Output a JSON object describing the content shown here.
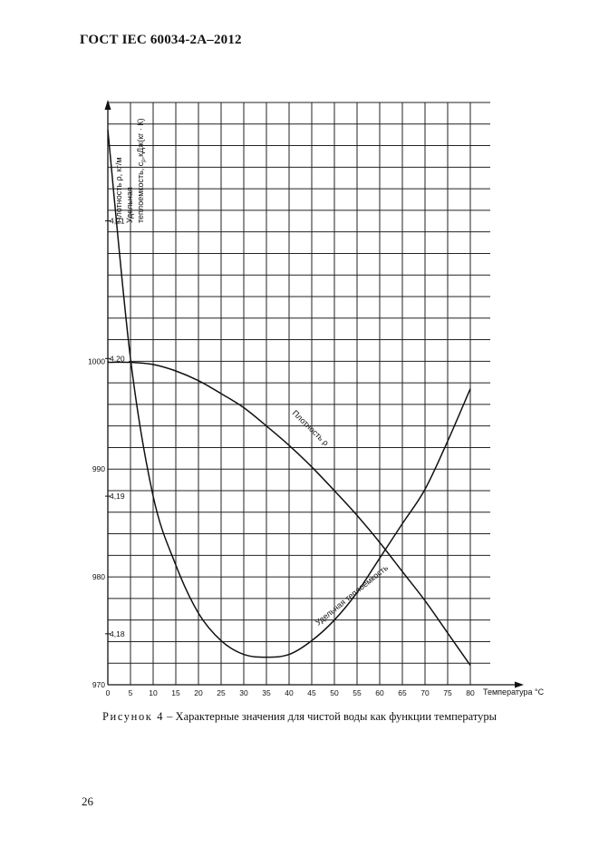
{
  "header": {
    "title": "ГОСТ IEC 60034-2A–2012"
  },
  "figure": {
    "caption_lead": "Рисунок 4",
    "caption_text": " – Характерные значения для чистой воды как функции температуры"
  },
  "page": {
    "number": "26"
  },
  "chart_data": {
    "type": "line",
    "xlabel": "Температура °С",
    "x_ticks": [
      0,
      5,
      10,
      15,
      20,
      25,
      30,
      35,
      40,
      45,
      50,
      55,
      60,
      65,
      70,
      75,
      80
    ],
    "xlim": [
      0,
      80
    ],
    "y_left": {
      "label": "Плотность ρ, кг/м",
      "ticks": [
        970,
        980,
        990,
        1000
      ],
      "ylim": [
        970,
        1024
      ]
    },
    "y_right": {
      "label_line1": "Удельная",
      "label_line2": "теплоемкость, c",
      "label_sub": "p",
      "label_unit": ",кДж(кг · К)",
      "ticks": [
        "4,18",
        "4,19",
        "4,20",
        "4,21"
      ],
      "tick_values": [
        4.18,
        4.19,
        4.2,
        4.21
      ],
      "ylim": [
        4.1763,
        4.2186
      ]
    },
    "series": [
      {
        "name": "Плотность ρ",
        "axis": "left",
        "x": [
          0,
          5,
          10,
          15,
          20,
          25,
          30,
          35,
          40,
          45,
          50,
          55,
          60,
          65,
          70,
          75,
          80
        ],
        "values": [
          999.9,
          999.9,
          999.7,
          999.1,
          998.2,
          997.0,
          995.7,
          994.0,
          992.2,
          990.2,
          988.0,
          985.7,
          983.2,
          980.5,
          977.8,
          974.8,
          971.8
        ]
      },
      {
        "name": "Удельная теплоемкость",
        "axis": "right",
        "x": [
          0,
          5,
          10,
          15,
          20,
          25,
          30,
          35,
          40,
          45,
          50,
          55,
          60,
          65,
          70,
          75,
          80
        ],
        "values": [
          4.2166,
          4.2,
          4.19,
          4.185,
          4.1815,
          4.1795,
          4.1785,
          4.1783,
          4.1785,
          4.1795,
          4.181,
          4.183,
          4.1855,
          4.188,
          4.1905,
          4.194,
          4.1978
        ]
      }
    ]
  }
}
